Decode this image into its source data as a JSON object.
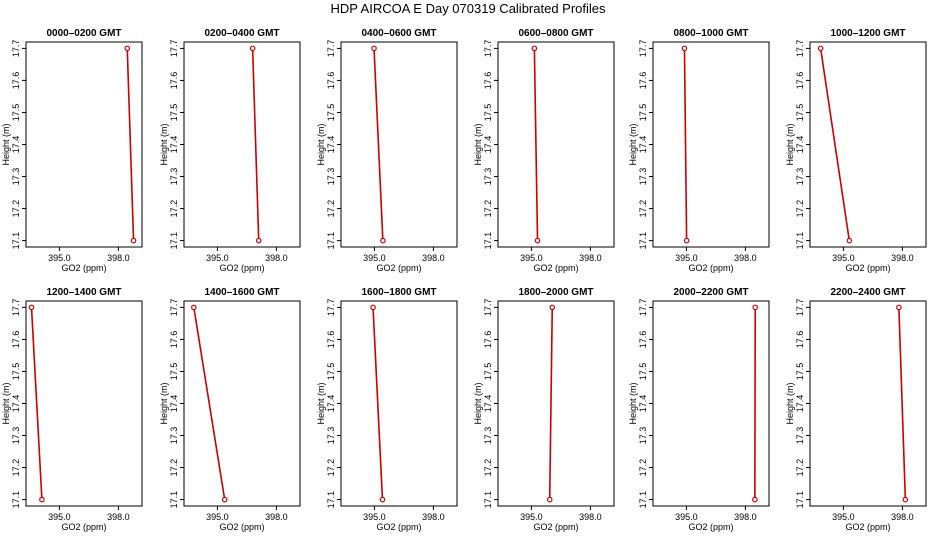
{
  "page_title": "HDP AIRCOA E  Day 070319  Calibrated Profiles",
  "chart_data": [
    {
      "type": "line",
      "title": "0000–0200 GMT",
      "xlabel": "GO2 (ppm)",
      "ylabel": "Height (m)",
      "xlim": [
        393.3,
        399.2
      ],
      "ylim": [
        17.08,
        17.72
      ],
      "xticks": [
        "395.0",
        "398.0"
      ],
      "yticks": [
        "17.1",
        "17.2",
        "17.3",
        "17.4",
        "17.5",
        "17.6",
        "17.7"
      ],
      "x": [
        398.45,
        398.77
      ],
      "y": [
        17.7,
        17.1
      ],
      "color": "#cc0000"
    },
    {
      "type": "line",
      "title": "0200–0400 GMT",
      "xlabel": "GO2 (ppm)",
      "ylabel": "Height (m)",
      "xlim": [
        393.3,
        399.2
      ],
      "ylim": [
        17.08,
        17.72
      ],
      "xticks": [
        "395.0",
        "398.0"
      ],
      "yticks": [
        "17.1",
        "17.2",
        "17.3",
        "17.4",
        "17.5",
        "17.6",
        "17.7"
      ],
      "x": [
        396.79,
        397.1
      ],
      "y": [
        17.7,
        17.1
      ],
      "color": "#cc0000"
    },
    {
      "type": "line",
      "title": "0400–0600 GMT",
      "xlabel": "GO2 (ppm)",
      "ylabel": "Height (m)",
      "xlim": [
        393.3,
        399.2
      ],
      "ylim": [
        17.08,
        17.72
      ],
      "xticks": [
        "395.0",
        "398.0"
      ],
      "yticks": [
        "17.1",
        "17.2",
        "17.3",
        "17.4",
        "17.5",
        "17.6",
        "17.7"
      ],
      "x": [
        394.98,
        395.43
      ],
      "y": [
        17.7,
        17.1
      ],
      "color": "#cc0000"
    },
    {
      "type": "line",
      "title": "0600–0800 GMT",
      "xlabel": "GO2 (ppm)",
      "ylabel": "Height (m)",
      "xlim": [
        393.3,
        399.2
      ],
      "ylim": [
        17.08,
        17.72
      ],
      "xticks": [
        "395.0",
        "398.0"
      ],
      "yticks": [
        "17.1",
        "17.2",
        "17.3",
        "17.4",
        "17.5",
        "17.6",
        "17.7"
      ],
      "x": [
        395.15,
        395.31
      ],
      "y": [
        17.7,
        17.1
      ],
      "color": "#cc0000"
    },
    {
      "type": "line",
      "title": "0800–1000 GMT",
      "xlabel": "GO2 (ppm)",
      "ylabel": "Height (m)",
      "xlim": [
        393.3,
        399.2
      ],
      "ylim": [
        17.08,
        17.72
      ],
      "xticks": [
        "395.0",
        "398.0"
      ],
      "yticks": [
        "17.1",
        "17.2",
        "17.3",
        "17.4",
        "17.5",
        "17.6",
        "17.7"
      ],
      "x": [
        394.9,
        395.01
      ],
      "y": [
        17.7,
        17.1
      ],
      "color": "#cc0000"
    },
    {
      "type": "line",
      "title": "1000–1200 GMT",
      "xlabel": "GO2 (ppm)",
      "ylabel": "Height (m)",
      "xlim": [
        393.3,
        399.2
      ],
      "ylim": [
        17.08,
        17.72
      ],
      "xticks": [
        "395.0",
        "398.0"
      ],
      "yticks": [
        "17.1",
        "17.2",
        "17.3",
        "17.4",
        "17.5",
        "17.6",
        "17.7"
      ],
      "x": [
        393.84,
        395.3
      ],
      "y": [
        17.7,
        17.1
      ],
      "color": "#cc0000"
    },
    {
      "type": "line",
      "title": "1200–1400 GMT",
      "xlabel": "GO2 (ppm)",
      "ylabel": "Height (m)",
      "xlim": [
        393.3,
        399.2
      ],
      "ylim": [
        17.08,
        17.72
      ],
      "xticks": [
        "395.0",
        "398.0"
      ],
      "yticks": [
        "17.1",
        "17.2",
        "17.3",
        "17.4",
        "17.5",
        "17.6",
        "17.7"
      ],
      "x": [
        393.58,
        394.11
      ],
      "y": [
        17.7,
        17.1
      ],
      "color": "#cc0000"
    },
    {
      "type": "line",
      "title": "1400–1600 GMT",
      "xlabel": "GO2 (ppm)",
      "ylabel": "Height (m)",
      "xlim": [
        393.3,
        399.2
      ],
      "ylim": [
        17.08,
        17.72
      ],
      "xticks": [
        "395.0",
        "398.0"
      ],
      "yticks": [
        "17.1",
        "17.2",
        "17.3",
        "17.4",
        "17.5",
        "17.6",
        "17.7"
      ],
      "x": [
        393.8,
        395.37
      ],
      "y": [
        17.7,
        17.1
      ],
      "color": "#cc0000"
    },
    {
      "type": "line",
      "title": "1600–1800 GMT",
      "xlabel": "GO2 (ppm)",
      "ylabel": "Height (m)",
      "xlim": [
        393.3,
        399.2
      ],
      "ylim": [
        17.08,
        17.72
      ],
      "xticks": [
        "395.0",
        "398.0"
      ],
      "yticks": [
        "17.1",
        "17.2",
        "17.3",
        "17.4",
        "17.5",
        "17.6",
        "17.7"
      ],
      "x": [
        394.93,
        395.41
      ],
      "y": [
        17.7,
        17.1
      ],
      "color": "#cc0000"
    },
    {
      "type": "line",
      "title": "1800–2000 GMT",
      "xlabel": "GO2 (ppm)",
      "ylabel": "Height (m)",
      "xlim": [
        393.3,
        399.2
      ],
      "ylim": [
        17.08,
        17.72
      ],
      "xticks": [
        "395.0",
        "398.0"
      ],
      "yticks": [
        "17.1",
        "17.2",
        "17.3",
        "17.4",
        "17.5",
        "17.6",
        "17.7"
      ],
      "x": [
        396.06,
        395.93
      ],
      "y": [
        17.7,
        17.1
      ],
      "color": "#cc0000"
    },
    {
      "type": "line",
      "title": "2000–2200 GMT",
      "xlabel": "GO2 (ppm)",
      "ylabel": "Height (m)",
      "xlim": [
        393.3,
        399.2
      ],
      "ylim": [
        17.08,
        17.72
      ],
      "xticks": [
        "395.0",
        "398.0"
      ],
      "yticks": [
        "17.1",
        "17.2",
        "17.3",
        "17.4",
        "17.5",
        "17.6",
        "17.7"
      ],
      "x": [
        398.5,
        398.48
      ],
      "y": [
        17.7,
        17.1
      ],
      "color": "#cc0000"
    },
    {
      "type": "line",
      "title": "2200–2400 GMT",
      "xlabel": "GO2 (ppm)",
      "ylabel": "Height (m)",
      "xlim": [
        393.3,
        399.2
      ],
      "ylim": [
        17.08,
        17.72
      ],
      "xticks": [
        "395.0",
        "398.0"
      ],
      "yticks": [
        "17.1",
        "17.2",
        "17.3",
        "17.4",
        "17.5",
        "17.6",
        "17.7"
      ],
      "x": [
        397.82,
        398.15
      ],
      "y": [
        17.7,
        17.1
      ],
      "color": "#cc0000"
    }
  ]
}
